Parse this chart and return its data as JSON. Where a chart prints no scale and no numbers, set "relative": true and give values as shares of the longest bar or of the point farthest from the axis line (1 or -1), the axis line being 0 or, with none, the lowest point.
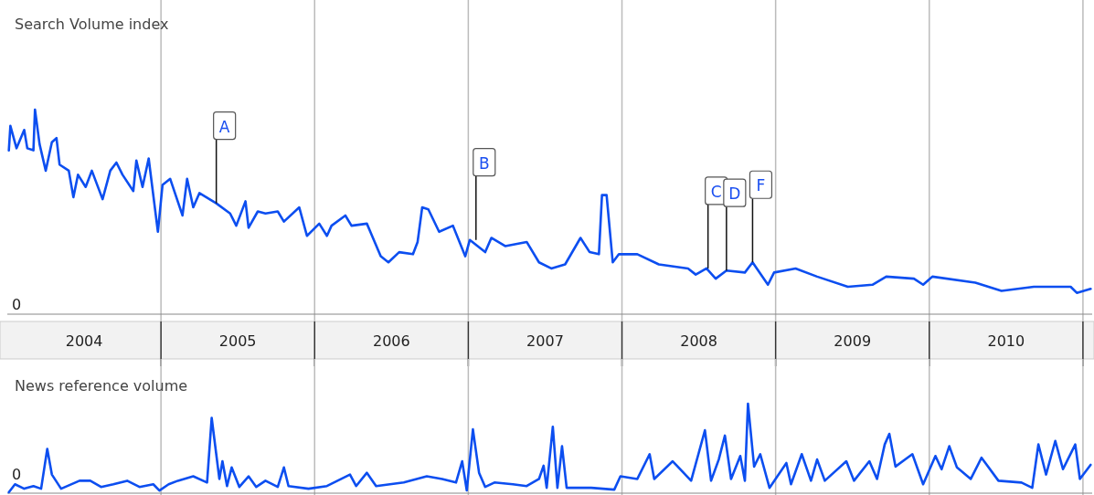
{
  "chart_data": [
    {
      "type": "line",
      "title": "Search Volume index",
      "relative": true,
      "grid": "x",
      "tick_labels": "x",
      "xlim": [
        2004,
        2011.06
      ],
      "xticks": [
        {
          "value": 2004.5,
          "label": "2004"
        },
        {
          "value": 2005,
          "label": null
        },
        {
          "value": 2005.5,
          "label": "2005"
        },
        {
          "value": 2006,
          "label": null
        },
        {
          "value": 2006.5,
          "label": "2006"
        },
        {
          "value": 2007,
          "label": null
        },
        {
          "value": 2007.5,
          "label": "2007"
        },
        {
          "value": 2008,
          "label": null
        },
        {
          "value": 2008.5,
          "label": "2008"
        },
        {
          "value": 2009,
          "label": null
        },
        {
          "value": 2009.5,
          "label": "2009"
        },
        {
          "value": 2010,
          "label": null
        },
        {
          "value": 2010.5,
          "label": "2010"
        },
        {
          "value": 2011,
          "label": null
        }
      ],
      "annotations": [
        "0",
        {
          "text": "A",
          "x": 2005.36,
          "y": 0.54
        },
        {
          "text": "B",
          "x": 2007.05,
          "y": 0.36
        },
        {
          "text": "C",
          "x": 2008.56,
          "y": 0.22
        },
        {
          "text": "D",
          "x": 2008.68,
          "y": 0.21
        },
        {
          "text": "F",
          "x": 2008.85,
          "y": 0.25
        }
      ],
      "series": [
        {
          "color": "#0c4ef0",
          "x": [
            2004.01,
            2004.02,
            2004.06,
            2004.11,
            2004.13,
            2004.17,
            2004.18,
            2004.21,
            2004.25,
            2004.29,
            2004.32,
            2004.34,
            2004.4,
            2004.43,
            2004.46,
            2004.51,
            2004.55,
            2004.62,
            2004.67,
            2004.71,
            2004.75,
            2004.82,
            2004.84,
            2004.88,
            2004.92,
            2004.98,
            2005.01,
            2005.06,
            2005.14,
            2005.17,
            2005.21,
            2005.25,
            2005.36,
            2005.45,
            2005.49,
            2005.55,
            2005.57,
            2005.63,
            2005.68,
            2005.76,
            2005.8,
            2005.9,
            2005.95,
            2006.03,
            2006.08,
            2006.11,
            2006.2,
            2006.24,
            2006.34,
            2006.43,
            2006.48,
            2006.55,
            2006.64,
            2006.67,
            2006.7,
            2006.74,
            2006.81,
            2006.9,
            2006.98,
            2007.01,
            2007.11,
            2007.15,
            2007.24,
            2007.38,
            2007.46,
            2007.54,
            2007.63,
            2007.73,
            2007.79,
            2007.85,
            2007.87,
            2007.9,
            2007.94,
            2007.98,
            2008.1,
            2008.24,
            2008.43,
            2008.48,
            2008.55,
            2008.61,
            2008.68,
            2008.8,
            2008.85,
            2008.95,
            2008.99,
            2009.13,
            2009.27,
            2009.47,
            2009.63,
            2009.72,
            2009.9,
            2009.96,
            2010.02,
            2010.3,
            2010.47,
            2010.68,
            2010.92,
            2010.96,
            2011.05
          ],
          "values": [
            0.8,
            0.92,
            0.81,
            0.9,
            0.81,
            0.8,
            1,
            0.83,
            0.7,
            0.84,
            0.86,
            0.73,
            0.7,
            0.57,
            0.68,
            0.62,
            0.7,
            0.56,
            0.7,
            0.74,
            0.68,
            0.6,
            0.75,
            0.62,
            0.76,
            0.4,
            0.63,
            0.66,
            0.48,
            0.66,
            0.52,
            0.59,
            0.54,
            0.49,
            0.43,
            0.55,
            0.42,
            0.5,
            0.49,
            0.5,
            0.45,
            0.52,
            0.38,
            0.44,
            0.38,
            0.43,
            0.48,
            0.43,
            0.44,
            0.28,
            0.25,
            0.3,
            0.29,
            0.35,
            0.52,
            0.51,
            0.4,
            0.43,
            0.28,
            0.36,
            0.3,
            0.37,
            0.33,
            0.35,
            0.25,
            0.22,
            0.24,
            0.37,
            0.3,
            0.29,
            0.58,
            0.58,
            0.25,
            0.29,
            0.29,
            0.24,
            0.22,
            0.19,
            0.22,
            0.17,
            0.21,
            0.2,
            0.25,
            0.14,
            0.2,
            0.22,
            0.18,
            0.13,
            0.14,
            0.18,
            0.17,
            0.14,
            0.18,
            0.15,
            0.11,
            0.13,
            0.13,
            0.1,
            0.12
          ]
        }
      ]
    },
    {
      "type": "line",
      "title": "News reference volume",
      "relative": true,
      "grid": "x",
      "tick_labels": false,
      "xlim": [
        2004,
        2011.06
      ],
      "xticks": [
        {
          "value": 2005,
          "label": null
        },
        {
          "value": 2006,
          "label": null
        },
        {
          "value": 2007,
          "label": null
        },
        {
          "value": 2008,
          "label": null
        },
        {
          "value": 2009,
          "label": null
        },
        {
          "value": 2010,
          "label": null
        },
        {
          "value": 2011,
          "label": null
        }
      ],
      "annotations": [
        "0"
      ],
      "series": [
        {
          "color": "#0c4ef0",
          "x": [
            2004.01,
            2004.05,
            2004.11,
            2004.17,
            2004.22,
            2004.26,
            2004.29,
            2004.35,
            2004.47,
            2004.54,
            2004.61,
            2004.69,
            2004.78,
            2004.86,
            2004.95,
            2004.99,
            2005.05,
            2005.11,
            2005.21,
            2005.3,
            2005.33,
            2005.38,
            2005.4,
            2005.43,
            2005.46,
            2005.51,
            2005.57,
            2005.62,
            2005.68,
            2005.76,
            2005.8,
            2005.83,
            2005.96,
            2006.08,
            2006.23,
            2006.27,
            2006.34,
            2006.4,
            2006.58,
            2006.73,
            2006.83,
            2006.92,
            2006.96,
            2006.99,
            2007.03,
            2007.07,
            2007.11,
            2007.17,
            2007.29,
            2007.38,
            2007.46,
            2007.49,
            2007.51,
            2007.55,
            2007.58,
            2007.61,
            2007.64,
            2007.8,
            2007.95,
            2007.99,
            2008.1,
            2008.18,
            2008.21,
            2008.33,
            2008.45,
            2008.54,
            2008.58,
            2008.63,
            2008.67,
            2008.71,
            2008.77,
            2008.8,
            2008.82,
            2008.86,
            2008.9,
            2008.96,
            2009.07,
            2009.1,
            2009.17,
            2009.23,
            2009.27,
            2009.32,
            2009.46,
            2009.51,
            2009.61,
            2009.66,
            2009.71,
            2009.74,
            2009.78,
            2009.89,
            2009.96,
            2010.04,
            2010.08,
            2010.13,
            2010.18,
            2010.27,
            2010.34,
            2010.45,
            2010.6,
            2010.67,
            2010.71,
            2010.76,
            2010.82,
            2010.87,
            2010.95,
            2010.98,
            2011.05
          ],
          "values": [
            0,
            0.09,
            0.04,
            0.07,
            0.04,
            0.49,
            0.2,
            0.04,
            0.13,
            0.13,
            0.06,
            0.09,
            0.13,
            0.06,
            0.09,
            0.02,
            0.09,
            0.13,
            0.18,
            0.11,
            0.84,
            0.15,
            0.35,
            0.07,
            0.28,
            0.06,
            0.18,
            0.06,
            0.13,
            0.06,
            0.28,
            0.07,
            0.04,
            0.07,
            0.2,
            0.07,
            0.22,
            0.07,
            0.11,
            0.18,
            0.15,
            0.11,
            0.35,
            0.02,
            0.71,
            0.22,
            0.06,
            0.11,
            0.09,
            0.07,
            0.15,
            0.3,
            0.05,
            0.74,
            0.05,
            0.52,
            0.05,
            0.05,
            0.03,
            0.18,
            0.15,
            0.43,
            0.15,
            0.35,
            0.13,
            0.7,
            0.13,
            0.37,
            0.64,
            0.15,
            0.41,
            0.13,
            1,
            0.29,
            0.43,
            0.05,
            0.33,
            0.09,
            0.43,
            0.13,
            0.37,
            0.13,
            0.35,
            0.13,
            0.35,
            0.15,
            0.54,
            0.66,
            0.29,
            0.43,
            0.09,
            0.41,
            0.26,
            0.52,
            0.28,
            0.15,
            0.39,
            0.13,
            0.11,
            0.05,
            0.54,
            0.2,
            0.58,
            0.26,
            0.54,
            0.15,
            0.31
          ]
        }
      ]
    }
  ]
}
